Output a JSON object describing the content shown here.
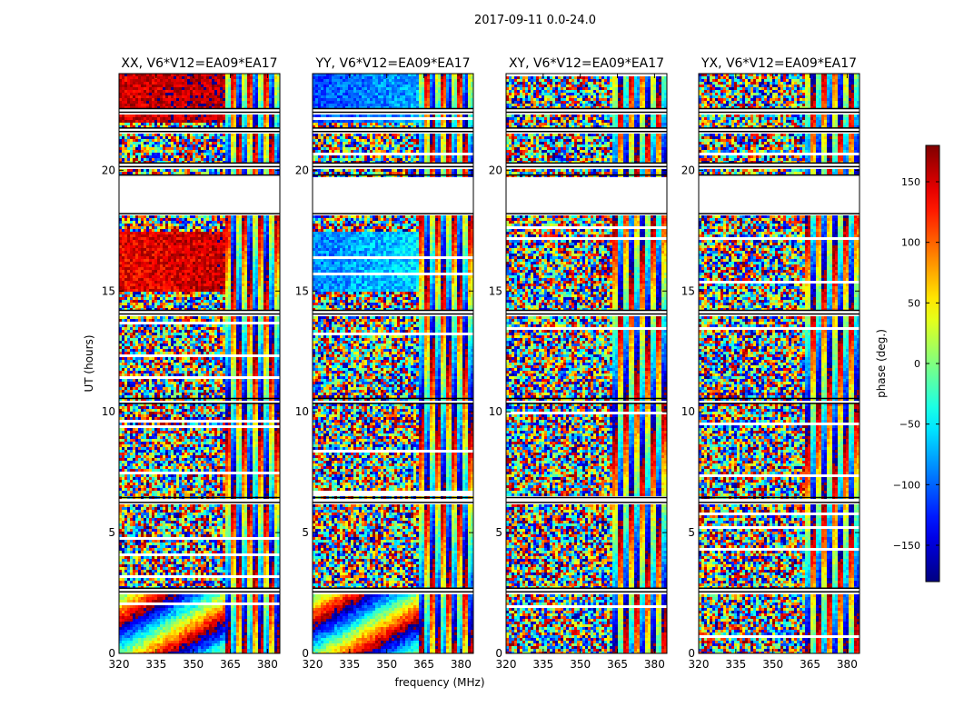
{
  "chart_data": {
    "type": "heatmap",
    "title": "2017-09-11 0.0-24.0",
    "xlabel": "frequency (MHz)",
    "ylabel": "UT (hours)",
    "xlim": [
      320,
      385
    ],
    "ylim": [
      0,
      24
    ],
    "x_ticks": [
      320,
      335,
      350,
      365,
      380
    ],
    "y_ticks": [
      0,
      5,
      10,
      15,
      20
    ],
    "colorbar": {
      "label": "phase (deg.)",
      "range": [
        -180,
        180
      ],
      "ticks": [
        150,
        100,
        50,
        0,
        -50,
        -100,
        -150
      ],
      "tick_labels": [
        "150",
        "100",
        "50",
        "0",
        "−50",
        "−100",
        "−150"
      ],
      "colormap": "jet"
    },
    "panels": [
      {
        "title": "XX, V6*V12=EA09*EA17",
        "polarization": "XX",
        "stable_phase_deg": [
          [
            15.0,
            17.5,
            140
          ],
          [
            22.0,
            24.0,
            150
          ]
        ]
      },
      {
        "title": "YY, V6*V12=EA09*EA17",
        "polarization": "YY",
        "stable_phase_deg": [
          [
            15.0,
            17.5,
            -90
          ],
          [
            22.0,
            24.0,
            -110
          ]
        ]
      },
      {
        "title": "XY, V6*V12=EA09*EA17",
        "polarization": "XY",
        "stable_phase_deg": []
      },
      {
        "title": "YX, V6*V12=EA09*EA17",
        "polarization": "YX",
        "stable_phase_deg": []
      }
    ],
    "flagged_ut_ranges": [
      [
        18.2,
        19.8
      ],
      [
        2.55,
        2.7
      ],
      [
        6.25,
        6.45
      ],
      [
        10.35,
        10.55
      ],
      [
        14.05,
        14.2
      ],
      [
        20.15,
        20.3
      ],
      [
        21.6,
        21.75
      ],
      [
        22.4,
        22.55
      ]
    ],
    "saturation_note": "structured fringe region above 362 MHz"
  }
}
